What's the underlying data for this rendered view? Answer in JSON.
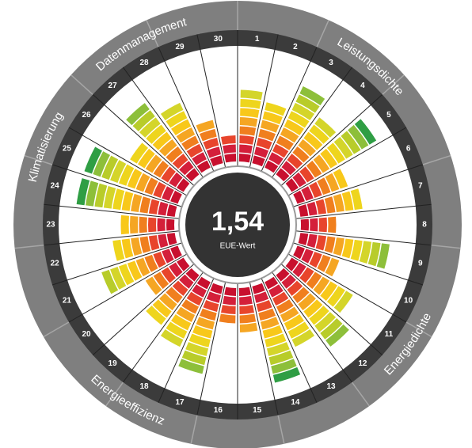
{
  "chart_data": {
    "type": "radial_bar",
    "center_value": "1,54",
    "center_label": "EUE-Wert",
    "categories": [
      "1",
      "2",
      "3",
      "4",
      "5",
      "6",
      "7",
      "8",
      "9",
      "10",
      "11",
      "12",
      "13",
      "14",
      "15",
      "16",
      "17",
      "18",
      "19",
      "20",
      "21",
      "22",
      "23",
      "24",
      "25",
      "26",
      "27",
      "28",
      "29",
      "30"
    ],
    "values": [
      8,
      7,
      10,
      8,
      11,
      6,
      7,
      4,
      10,
      5,
      8,
      10,
      8,
      11,
      5,
      4,
      10,
      8,
      7,
      5,
      9,
      7,
      6,
      11,
      11,
      7,
      10,
      8,
      5,
      3
    ],
    "rlim": [
      0,
      11
    ],
    "level_colors": [
      "#c8102e",
      "#d41f3a",
      "#e8452c",
      "#f07f1e",
      "#f5a623",
      "#f8c81a",
      "#eed51d",
      "#d4d52a",
      "#b8cc2a",
      "#8dbf3a",
      "#2f9e44"
    ],
    "groups": [
      "Datenmanagement",
      "Leistungsdichte",
      "Klimatisierung",
      "Energiedichte",
      "Energieeffizienz"
    ]
  }
}
